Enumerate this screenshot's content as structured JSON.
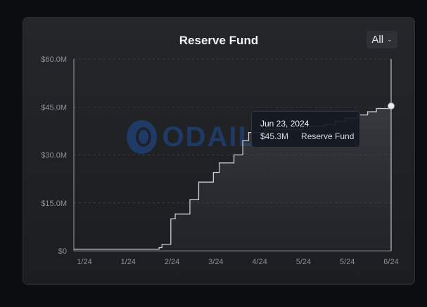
{
  "header": {
    "title": "Reserve Fund",
    "range_selector": "All",
    "range_icon": "chevron-down-icon"
  },
  "watermark": {
    "text": "ODAILY"
  },
  "tooltip": {
    "date": "Jun 23, 2024",
    "value": "$45.3M",
    "series": "Reserve Fund"
  },
  "colors": {
    "line": "#c9ccd3",
    "marker": "#e9ebee",
    "background": "#1f2024",
    "grid": "#3a3c42"
  },
  "chart_data": {
    "type": "area",
    "title": "Reserve Fund",
    "y_tick_labels": [
      "$0",
      "$15.0M",
      "$30.0M",
      "$45.0M",
      "$60.0M"
    ],
    "y_ticks": [
      0,
      15,
      30,
      45,
      60
    ],
    "x_tick_labels": [
      "1/24",
      "1/24",
      "2/24",
      "3/24",
      "4/24",
      "5/24",
      "5/24",
      "6/24"
    ],
    "ylim": [
      0,
      60
    ],
    "y_unit": "$M",
    "grid": "horizontal dashed",
    "series": [
      {
        "name": "Reserve Fund",
        "values": [
          0.5,
          0.5,
          0.5,
          0.5,
          0.5,
          0.5,
          0.5,
          0.5,
          0.5,
          0.5,
          0.5,
          0.5,
          0.5,
          0.5,
          0.5,
          0.5,
          0.5,
          0.5,
          0.5,
          0.5,
          0.5,
          0.5,
          0.5,
          0.5,
          0.5,
          0.5,
          0.5,
          0.5,
          0.5,
          0.5,
          0.5,
          0.5,
          0.5,
          0.5,
          0.5,
          0.5,
          0.5,
          0.5,
          0.5,
          0.5,
          0.5,
          0.5,
          0.5,
          0.5,
          0.5,
          0.5,
          0.5,
          0.5,
          0.5,
          0.5,
          0.5,
          0.5,
          0.5,
          0.5,
          0.5,
          0.5,
          0.5,
          0.5,
          1.0,
          1.0,
          2.0,
          2.0,
          2.0,
          2.0,
          2.0,
          2.0,
          10.0,
          10.0,
          10.0,
          11.5,
          11.5,
          11.5,
          11.5,
          11.5,
          11.5,
          11.5,
          11.5,
          11.5,
          11.5,
          16.0,
          16.0,
          16.0,
          16.0,
          16.0,
          16.0,
          21.5,
          21.5,
          21.5,
          21.5,
          21.5,
          21.5,
          21.5,
          21.5,
          21.5,
          21.5,
          24.5,
          24.5,
          24.5,
          24.5,
          27.5,
          27.5,
          27.5,
          27.5,
          27.5,
          27.5,
          27.5,
          27.5,
          27.5,
          27.5,
          30.0,
          30.0,
          30.0,
          30.0,
          30.0,
          30.0,
          34.5,
          34.5,
          34.5,
          34.5,
          37.0,
          37.0,
          37.0,
          37.0,
          37.0,
          37.0,
          37.0,
          37.0,
          37.0,
          37.0,
          37.0,
          38.0,
          38.0,
          38.0,
          38.0,
          38.0,
          38.0,
          38.0,
          38.0,
          38.0,
          38.0,
          38.0,
          38.0,
          38.0,
          38.0,
          38.0,
          38.0,
          38.0,
          38.0,
          38.0,
          38.0,
          38.0,
          38.0,
          38.0,
          38.0,
          38.0,
          38.0,
          39.0,
          39.0,
          39.0,
          39.0,
          39.0,
          39.0,
          39.0,
          39.0,
          39.0,
          39.0,
          39.0,
          39.0,
          39.0,
          39.0,
          39.0,
          39.5,
          39.5,
          39.5,
          39.5,
          39.5,
          39.5,
          39.5,
          40.5,
          40.5,
          40.5,
          40.5,
          40.5,
          40.5,
          40.5,
          41.5,
          41.5,
          41.5,
          41.5,
          41.5,
          41.5,
          41.5,
          41.5,
          42.5,
          42.5,
          42.5,
          42.5,
          42.5,
          42.5,
          42.5,
          43.5,
          43.5,
          43.5,
          43.5,
          43.5,
          43.5,
          44.5,
          44.5,
          44.5,
          44.5,
          44.5,
          44.5,
          44.5,
          44.5,
          44.5,
          45.3,
          45.3
        ]
      }
    ],
    "highlighted_point": {
      "date": "Jun 23, 2024",
      "value": 45.3
    }
  }
}
